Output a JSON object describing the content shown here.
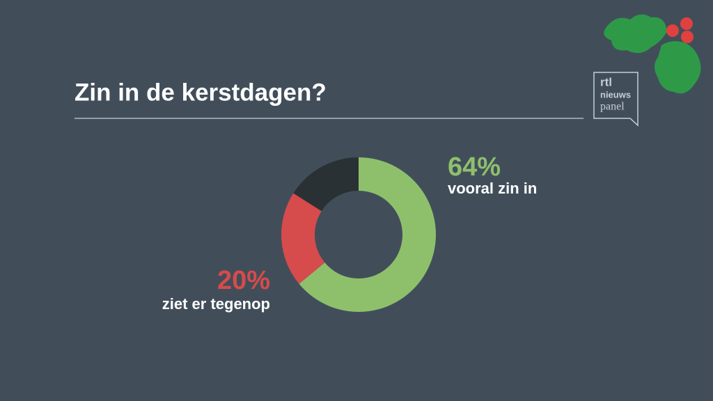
{
  "chart_data": {
    "type": "donut",
    "title": "Zin in de kerstdagen?",
    "categories": [
      "vooral zin in",
      "ziet er tegenop",
      null
    ],
    "values": [
      64,
      20,
      16
    ],
    "value_labels": [
      "64%",
      "20%",
      null
    ],
    "colors": [
      "#8ec06c",
      "#d64b4b",
      "#2a3134"
    ]
  },
  "logo": {
    "lines": [
      "rtl",
      "nieuws",
      "panel"
    ]
  }
}
